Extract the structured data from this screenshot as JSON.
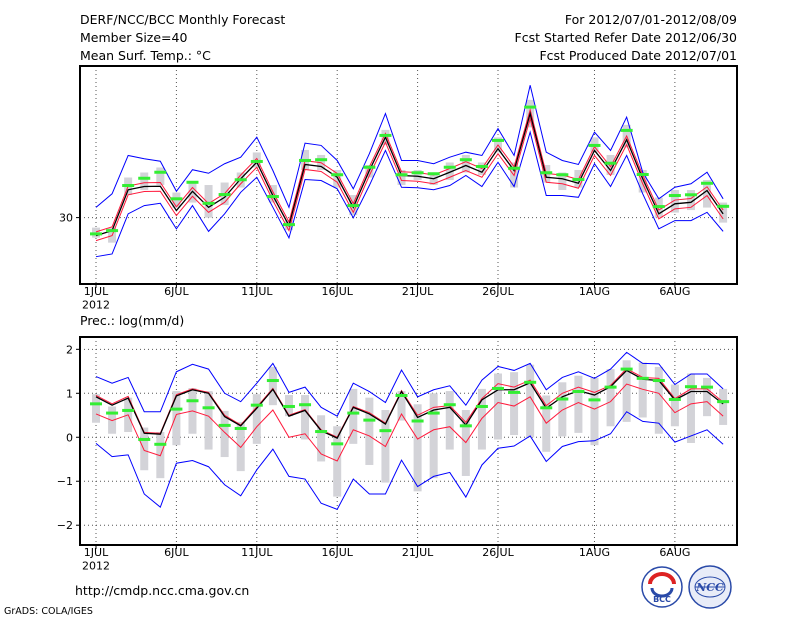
{
  "header": {
    "title": "DERF/NCC/BCC Monthly Forecast",
    "member_size": "Member Size=40",
    "variable": "Mean Surf. Temp.: °C",
    "period": "For 2012/07/01-2012/08/09",
    "started": "Fcst Started Refer Date 2012/06/30",
    "produced": "Fcst Produced Date 2012/07/01"
  },
  "footer": {
    "url": "http://cmdp.ncc.cma.gov.cn",
    "credit": "GrADS: COLA/IGES",
    "logo_left": "BCC",
    "logo_right": "NCC"
  },
  "colors": {
    "mean": "#000000",
    "spread": "#ff1a3c",
    "range": "#0000ff",
    "obs": "#33ee33",
    "box": "#d3d3d8"
  },
  "chart_data": [
    {
      "type": "line",
      "title": "Mean Surf. Temp.: °C",
      "xlabel": "",
      "ylabel": "°C",
      "x_tick_labels": [
        "1JUL",
        "6JUL",
        "11JUL",
        "16JUL",
        "21JUL",
        "26JUL",
        "1AUG",
        "6AUG"
      ],
      "x_tick_days": [
        1,
        6,
        11,
        16,
        21,
        26,
        32,
        37
      ],
      "year_label": "2012",
      "y_ticks": [
        30
      ],
      "y_tick_labels": [
        "30"
      ],
      "ylim": [
        27.35,
        36.05
      ],
      "grid": true,
      "days": 40,
      "ens_mean": [
        29.28,
        29.48,
        31.11,
        31.24,
        31.25,
        30.28,
        31.05,
        30.41,
        30.81,
        31.55,
        32.21,
        30.88,
        29.68,
        32.12,
        32.04,
        31.61,
        30.41,
        31.88,
        33.21,
        31.68,
        31.65,
        31.55,
        31.81,
        32.08,
        31.81,
        32.75,
        31.88,
        34.15,
        31.61,
        31.55,
        31.37,
        32.68,
        31.88,
        33.11,
        31.55,
        30.15,
        30.55,
        30.61,
        31.08,
        30.15
      ],
      "spread_upper": [
        29.43,
        29.63,
        31.26,
        31.39,
        31.4,
        30.43,
        31.2,
        30.56,
        30.96,
        31.7,
        32.36,
        31.03,
        29.83,
        32.27,
        32.19,
        31.76,
        30.56,
        32.03,
        33.36,
        31.83,
        31.8,
        31.7,
        31.96,
        32.23,
        31.96,
        32.9,
        32.03,
        34.3,
        31.76,
        31.7,
        31.52,
        32.83,
        32.03,
        33.26,
        31.7,
        30.3,
        30.7,
        30.76,
        31.23,
        30.3
      ],
      "spread_lower": [
        29.08,
        29.28,
        30.91,
        31.04,
        31.05,
        30.08,
        30.85,
        30.21,
        30.61,
        31.35,
        32.01,
        30.68,
        29.48,
        31.92,
        31.84,
        31.41,
        30.21,
        31.68,
        33.01,
        31.48,
        31.45,
        31.35,
        31.61,
        31.88,
        31.61,
        32.55,
        31.68,
        33.95,
        31.41,
        31.35,
        31.17,
        32.48,
        31.68,
        32.91,
        31.35,
        29.95,
        30.35,
        30.41,
        30.88,
        29.95
      ],
      "ens_max": [
        30.41,
        30.95,
        32.48,
        32.35,
        32.25,
        31.05,
        31.91,
        31.77,
        32.15,
        32.41,
        33.21,
        31.88,
        30.41,
        32.97,
        32.88,
        32.28,
        31.15,
        32.55,
        34.15,
        32.28,
        32.28,
        32.15,
        32.41,
        32.61,
        32.48,
        33.55,
        32.48,
        35.28,
        32.61,
        32.28,
        32.12,
        33.41,
        32.68,
        34.01,
        31.81,
        30.75,
        31.21,
        31.35,
        31.81,
        30.75
      ],
      "ens_min": [
        28.44,
        28.55,
        30.15,
        30.48,
        30.57,
        29.55,
        30.48,
        29.45,
        30.15,
        31.01,
        31.61,
        30.41,
        29.19,
        31.52,
        31.48,
        31.15,
        29.99,
        31.28,
        32.68,
        31.21,
        31.19,
        31.11,
        31.28,
        31.68,
        31.24,
        32.21,
        31.24,
        33.41,
        30.88,
        30.88,
        30.81,
        32.15,
        31.24,
        32.48,
        30.95,
        29.55,
        29.88,
        29.88,
        30.21,
        29.45
      ],
      "observed": [
        29.35,
        29.48,
        31.28,
        31.57,
        31.81,
        30.75,
        31.41,
        30.57,
        30.92,
        31.51,
        32.24,
        30.84,
        29.72,
        32.28,
        32.31,
        31.71,
        30.48,
        32.01,
        33.28,
        31.71,
        31.79,
        31.75,
        32.01,
        32.31,
        32.04,
        33.08,
        31.97,
        34.41,
        31.79,
        31.71,
        31.52,
        32.88,
        32.17,
        33.48,
        31.72,
        30.44,
        30.88,
        30.91,
        31.37,
        30.45
      ],
      "clim_range": [
        [
          29.2,
          29.6
        ],
        [
          29.0,
          29.6
        ],
        [
          30.9,
          31.6
        ],
        [
          31.1,
          31.8
        ],
        [
          31.3,
          32.0
        ],
        [
          30.4,
          31.0
        ],
        [
          30.6,
          31.4
        ],
        [
          30.0,
          31.3
        ],
        [
          30.5,
          31.4
        ],
        [
          31.2,
          31.8
        ],
        [
          32.0,
          32.6
        ],
        [
          30.6,
          31.3
        ],
        [
          29.5,
          29.9
        ],
        [
          31.9,
          32.7
        ],
        [
          31.9,
          32.5
        ],
        [
          31.2,
          31.9
        ],
        [
          30.1,
          30.9
        ],
        [
          31.6,
          32.1
        ],
        [
          32.9,
          33.5
        ],
        [
          31.3,
          31.9
        ],
        [
          31.5,
          31.9
        ],
        [
          31.3,
          31.8
        ],
        [
          31.5,
          32.2
        ],
        [
          31.8,
          32.5
        ],
        [
          31.7,
          32.2
        ],
        [
          32.6,
          33.2
        ],
        [
          31.2,
          32.2
        ],
        [
          33.6,
          34.7
        ],
        [
          31.4,
          32.1
        ],
        [
          31.1,
          31.8
        ],
        [
          31.2,
          31.9
        ],
        [
          32.6,
          33.2
        ],
        [
          31.7,
          32.5
        ],
        [
          32.8,
          33.7
        ],
        [
          31.0,
          31.9
        ],
        [
          30.0,
          30.8
        ],
        [
          30.2,
          31.1
        ],
        [
          30.3,
          31.1
        ],
        [
          30.4,
          31.5
        ],
        [
          29.8,
          30.6
        ]
      ]
    },
    {
      "type": "line",
      "title": "Prec.: log(mm/d)",
      "xlabel": "",
      "ylabel": "log(mm/d)",
      "x_tick_labels": [
        "1JUL",
        "6JUL",
        "11JUL",
        "16JUL",
        "21JUL",
        "26JUL",
        "1AUG",
        "6AUG"
      ],
      "x_tick_days": [
        1,
        6,
        11,
        16,
        21,
        26,
        32,
        37
      ],
      "year_label": "2012",
      "y_ticks": [
        -2,
        -1,
        0,
        1,
        2
      ],
      "y_tick_labels": [
        "−2",
        "−1",
        "0",
        "1",
        "2"
      ],
      "ylim": [
        -2.45,
        2.28
      ],
      "grid": true,
      "days": 40,
      "ens_mean": [
        0.92,
        0.73,
        0.89,
        0.09,
        0.07,
        0.94,
        1.08,
        1.0,
        0.47,
        0.26,
        0.66,
        1.09,
        0.48,
        0.61,
        0.15,
        -0.02,
        0.68,
        0.53,
        0.3,
        1.04,
        0.45,
        0.62,
        0.68,
        0.28,
        0.85,
        1.08,
        1.08,
        1.24,
        0.66,
        0.92,
        1.06,
        0.96,
        1.15,
        1.52,
        1.32,
        1.29,
        0.85,
        1.04,
        1.04,
        0.76
      ],
      "spread_upper": [
        0.95,
        0.76,
        0.93,
        0.11,
        0.09,
        0.97,
        1.1,
        1.02,
        0.5,
        0.28,
        0.69,
        1.11,
        0.5,
        0.63,
        0.17,
        0.0,
        0.7,
        0.56,
        0.32,
        1.06,
        0.5,
        0.68,
        0.72,
        0.34,
        0.88,
        1.22,
        1.14,
        1.3,
        0.72,
        1.0,
        1.14,
        1.02,
        1.18,
        1.56,
        1.36,
        1.34,
        0.88,
        1.1,
        1.1,
        0.8
      ],
      "spread_lower": [
        0.53,
        0.38,
        0.51,
        -0.3,
        -0.42,
        0.52,
        0.6,
        0.48,
        0.11,
        -0.23,
        0.24,
        0.62,
        0.0,
        0.08,
        -0.38,
        -0.54,
        0.17,
        0.03,
        -0.21,
        0.53,
        -0.04,
        0.17,
        0.24,
        -0.12,
        0.43,
        0.79,
        0.71,
        0.92,
        0.32,
        0.62,
        0.79,
        0.64,
        0.81,
        1.21,
        1.09,
        1.0,
        0.56,
        0.76,
        0.81,
        0.48
      ],
      "ens_max": [
        1.38,
        1.23,
        1.36,
        0.58,
        0.58,
        1.49,
        1.66,
        1.55,
        1.0,
        0.81,
        1.23,
        1.68,
        1.02,
        1.14,
        0.68,
        0.48,
        1.23,
        1.04,
        0.79,
        1.53,
        0.92,
        1.08,
        1.17,
        0.73,
        1.3,
        1.61,
        1.52,
        1.68,
        1.08,
        1.36,
        1.49,
        1.34,
        1.55,
        1.93,
        1.68,
        1.67,
        1.2,
        1.44,
        1.44,
        1.1
      ],
      "ens_min": [
        -0.14,
        -0.44,
        -0.4,
        -1.29,
        -1.59,
        -0.59,
        -0.53,
        -0.67,
        -1.08,
        -1.33,
        -0.74,
        -0.27,
        -0.89,
        -0.95,
        -1.5,
        -1.64,
        -0.95,
        -1.29,
        -1.29,
        -0.52,
        -1.12,
        -0.89,
        -0.8,
        -1.36,
        -0.63,
        -0.25,
        -0.2,
        0.03,
        -0.55,
        -0.21,
        -0.1,
        -0.08,
        0.08,
        0.58,
        0.36,
        0.32,
        -0.11,
        0.03,
        0.17,
        -0.16
      ],
      "observed": [
        0.76,
        0.55,
        0.61,
        -0.05,
        -0.16,
        0.64,
        0.83,
        0.67,
        0.27,
        0.2,
        0.73,
        1.29,
        0.7,
        0.74,
        0.13,
        -0.15,
        0.55,
        0.39,
        0.15,
        0.95,
        0.37,
        0.55,
        0.74,
        0.26,
        0.7,
        1.11,
        1.02,
        1.25,
        0.67,
        0.87,
        1.04,
        0.85,
        1.14,
        1.55,
        1.34,
        1.29,
        0.86,
        1.15,
        1.14,
        0.81
      ],
      "clim_range": [
        [
          0.33,
          0.98
        ],
        [
          0.08,
          0.7
        ],
        [
          0.12,
          0.9
        ],
        [
          -0.75,
          0.22
        ],
        [
          -0.93,
          0.12
        ],
        [
          -0.18,
          1.05
        ],
        [
          0.08,
          1.12
        ],
        [
          -0.28,
          1.05
        ],
        [
          -0.45,
          0.6
        ],
        [
          -0.77,
          0.35
        ],
        [
          -0.15,
          0.98
        ],
        [
          0.73,
          1.6
        ],
        [
          0.48,
          0.96
        ],
        [
          -0.05,
          0.96
        ],
        [
          -0.55,
          0.5
        ],
        [
          -1.35,
          0.25
        ],
        [
          -0.15,
          1.1
        ],
        [
          -0.63,
          0.9
        ],
        [
          -1.03,
          0.62
        ],
        [
          0.38,
          1.05
        ],
        [
          -1.23,
          0.75
        ],
        [
          -0.93,
          1.0
        ],
        [
          -0.28,
          1.05
        ],
        [
          -0.88,
          0.62
        ],
        [
          -0.28,
          1.1
        ],
        [
          -0.05,
          1.45
        ],
        [
          0.05,
          1.48
        ],
        [
          0.0,
          1.65
        ],
        [
          -0.33,
          0.95
        ],
        [
          0.02,
          1.25
        ],
        [
          0.1,
          1.4
        ],
        [
          -0.18,
          1.35
        ],
        [
          0.25,
          1.55
        ],
        [
          0.35,
          1.75
        ],
        [
          0.45,
          1.7
        ],
        [
          0.08,
          1.6
        ],
        [
          0.25,
          1.2
        ],
        [
          -0.13,
          1.45
        ],
        [
          0.48,
          1.35
        ],
        [
          0.28,
          1.1
        ]
      ]
    }
  ]
}
